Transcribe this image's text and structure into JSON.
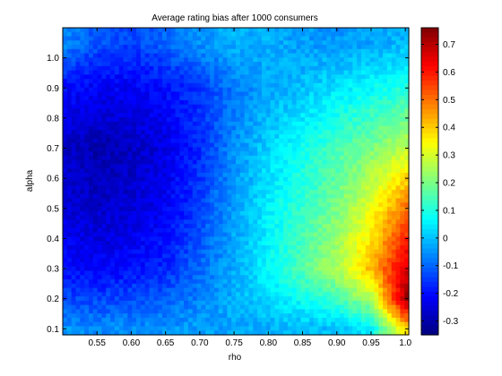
{
  "chart_data": {
    "type": "heatmap",
    "title": "Average rating bias after 1000 consumers",
    "xlabel": "rho",
    "ylabel": "alpha",
    "xlim": [
      0.5,
      1.005
    ],
    "ylim": [
      0.08,
      1.1
    ],
    "x_ticks": [
      0.55,
      0.6,
      0.65,
      0.7,
      0.75,
      0.8,
      0.85,
      0.9,
      0.95,
      1.0
    ],
    "x_tick_labels": [
      "0.55",
      "0.60",
      "0.65",
      "0.70",
      "0.75",
      "0.80",
      "0.85",
      "0.90",
      "0.95",
      "1.0"
    ],
    "y_ticks": [
      0.1,
      0.2,
      0.3,
      0.4,
      0.5,
      0.6,
      0.7,
      0.8,
      0.9,
      1.0
    ],
    "y_tick_labels": [
      "0.1",
      "0.2",
      "0.3",
      "0.4",
      "0.5",
      "0.6",
      "0.7",
      "0.8",
      "0.9",
      "1.0"
    ],
    "colorbar": {
      "colormap": "jet",
      "range": [
        -0.35,
        0.76
      ],
      "ticks": [
        -0.3,
        -0.2,
        -0.1,
        0,
        0.1,
        0.2,
        0.3,
        0.4,
        0.5,
        0.6,
        0.7
      ],
      "tick_labels": [
        "-0.3",
        "-0.2",
        "-0.1",
        "0",
        "0.1",
        "0.2",
        "0.3",
        "0.4",
        "0.5",
        "0.6",
        "0.7"
      ]
    },
    "x": [
      0.5,
      0.55,
      0.6,
      0.65,
      0.7,
      0.75,
      0.8,
      0.85,
      0.9,
      0.95,
      1.0
    ],
    "y": [
      1.05,
      0.9,
      0.7,
      0.5,
      0.3,
      0.2,
      0.1
    ],
    "z": [
      [
        -0.06,
        -0.12,
        -0.14,
        -0.1,
        -0.05,
        -0.02,
        -0.02,
        -0.04,
        -0.05,
        -0.03,
        -0.01
      ],
      [
        -0.2,
        -0.22,
        -0.22,
        -0.2,
        -0.15,
        -0.08,
        -0.03,
        0.0,
        0.04,
        0.07,
        0.1
      ],
      [
        -0.27,
        -0.3,
        -0.28,
        -0.24,
        -0.17,
        -0.06,
        0.02,
        0.08,
        0.14,
        0.2,
        0.27
      ],
      [
        -0.25,
        -0.27,
        -0.26,
        -0.22,
        -0.14,
        -0.04,
        0.05,
        0.12,
        0.2,
        0.32,
        0.5
      ],
      [
        -0.2,
        -0.22,
        -0.2,
        -0.17,
        -0.1,
        -0.02,
        0.06,
        0.16,
        0.26,
        0.42,
        0.66
      ],
      [
        -0.13,
        -0.14,
        -0.13,
        -0.11,
        -0.07,
        -0.02,
        0.03,
        0.08,
        0.14,
        0.25,
        0.72
      ],
      [
        -0.05,
        -0.06,
        -0.06,
        -0.05,
        -0.04,
        -0.03,
        -0.02,
        -0.01,
        0.0,
        0.05,
        0.4
      ]
    ]
  }
}
